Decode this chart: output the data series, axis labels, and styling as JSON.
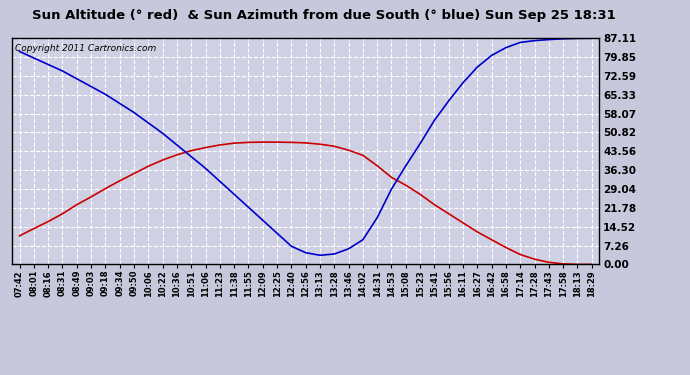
{
  "title": "Sun Altitude (° red)  & Sun Azimuth from due South (° blue) Sun Sep 25 18:31",
  "copyright": "Copyright 2011 Cartronics.com",
  "yticks": [
    0.0,
    7.26,
    14.52,
    21.78,
    29.04,
    36.3,
    43.56,
    50.82,
    58.07,
    65.33,
    72.59,
    79.85,
    87.11
  ],
  "ylim": [
    0.0,
    87.11
  ],
  "fig_bg_color": "#c8c8dc",
  "plot_bg_color": "#d0d0e4",
  "grid_color": "#ffffff",
  "title_fontsize": 9.5,
  "copyright_fontsize": 6.5,
  "x_labels": [
    "07:42",
    "08:01",
    "08:16",
    "08:31",
    "08:49",
    "09:03",
    "09:18",
    "09:34",
    "09:50",
    "10:06",
    "10:22",
    "10:36",
    "10:51",
    "11:06",
    "11:23",
    "11:38",
    "11:55",
    "12:09",
    "12:25",
    "12:40",
    "12:56",
    "13:13",
    "13:28",
    "13:46",
    "14:02",
    "14:31",
    "14:53",
    "15:08",
    "15:23",
    "15:41",
    "15:56",
    "16:11",
    "16:27",
    "16:42",
    "16:58",
    "17:14",
    "17:28",
    "17:43",
    "17:58",
    "18:13",
    "18:29"
  ],
  "altitude_values": [
    11.0,
    13.8,
    16.5,
    19.5,
    23.0,
    26.0,
    29.2,
    32.2,
    35.0,
    37.8,
    40.2,
    42.2,
    43.8,
    45.0,
    46.0,
    46.7,
    47.0,
    47.1,
    47.1,
    47.0,
    46.8,
    46.3,
    45.5,
    44.0,
    42.0,
    38.0,
    33.5,
    30.5,
    27.0,
    23.0,
    19.5,
    16.0,
    12.5,
    9.5,
    6.5,
    3.8,
    2.0,
    0.8,
    0.2,
    0.0,
    0.0
  ],
  "azimuth_values": [
    82.0,
    79.5,
    77.0,
    74.5,
    71.5,
    68.5,
    65.5,
    62.0,
    58.5,
    54.5,
    50.5,
    46.0,
    41.5,
    37.0,
    32.0,
    27.0,
    22.0,
    17.0,
    12.0,
    7.0,
    4.5,
    3.5,
    4.0,
    6.0,
    9.5,
    18.0,
    29.0,
    38.0,
    46.5,
    55.5,
    63.0,
    70.0,
    76.0,
    80.5,
    83.5,
    85.5,
    86.2,
    86.6,
    86.9,
    87.05,
    87.11
  ],
  "altitude_color": "#cc0000",
  "azimuth_color": "#0000cc",
  "line_width": 1.2,
  "tick_fontsize": 7.5,
  "xlabel_fontsize": 6.0
}
